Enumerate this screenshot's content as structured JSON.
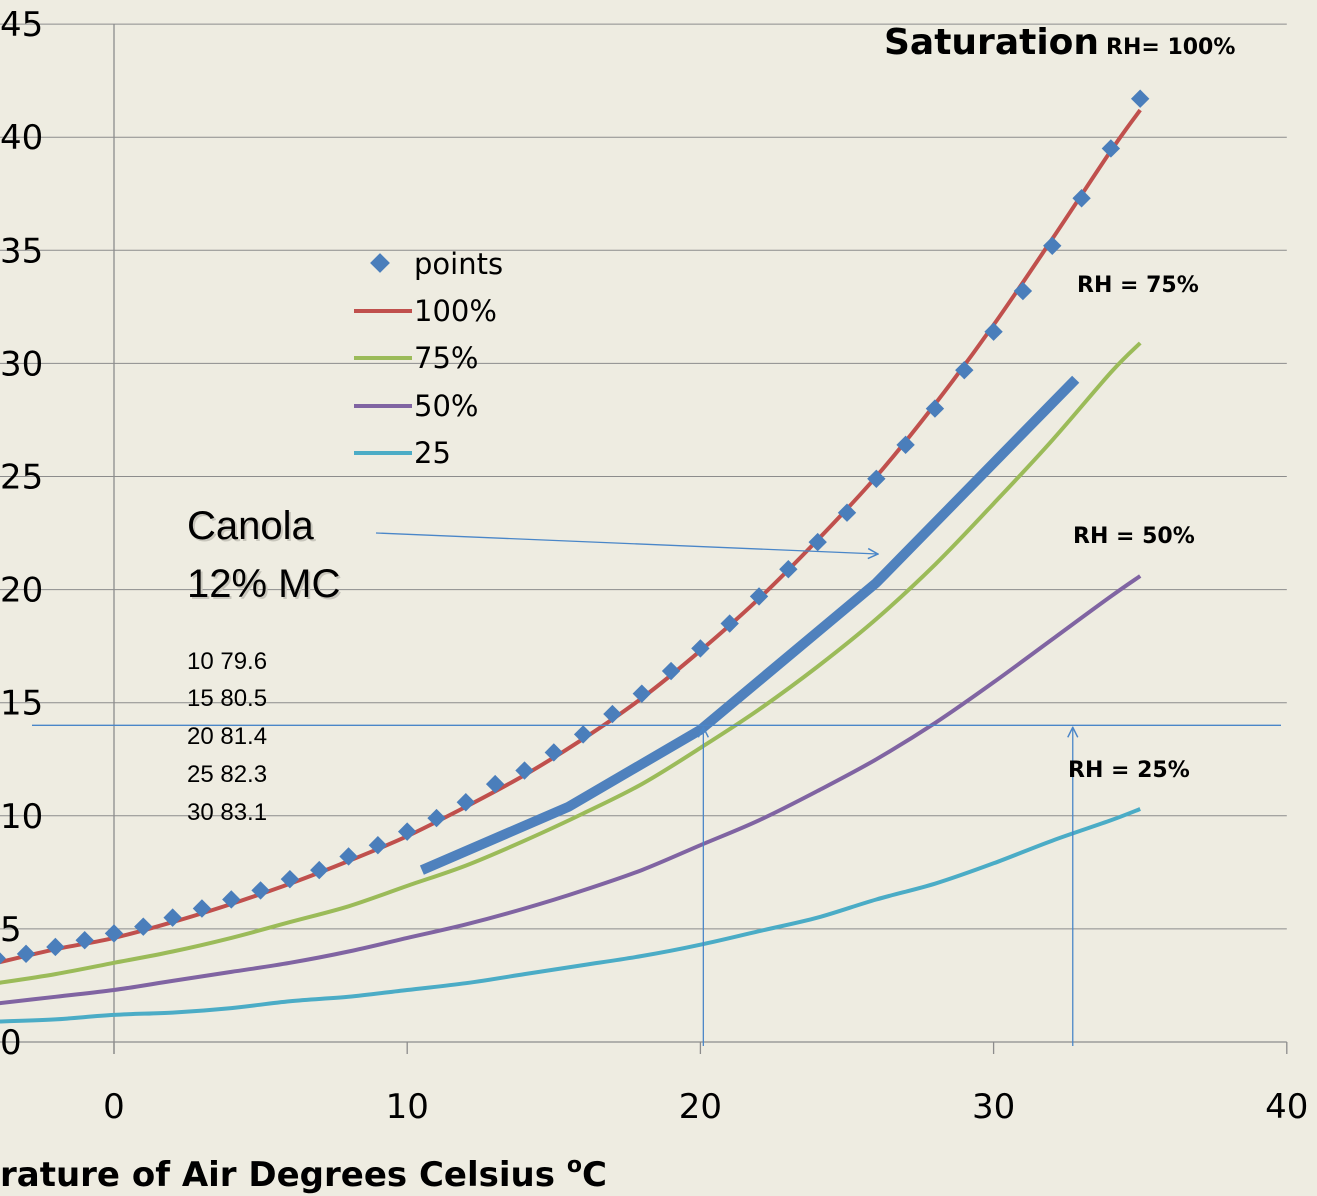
{
  "chart_data": {
    "type": "line",
    "xlabel": "rature of Air   Degrees Celsius  ",
    "xlabel_sup": "o",
    "xlabel_unit": "C",
    "xlim": [
      -4,
      40
    ],
    "ylim": [
      0,
      45
    ],
    "x_ticks": [
      "0",
      "10",
      "20",
      "30",
      "40"
    ],
    "y_ticks": [
      "0",
      "5",
      "10",
      "15",
      "20",
      "25",
      "30",
      "35",
      "40",
      "45"
    ],
    "grid": "horizontal",
    "legend_position": "center-left",
    "legend": [
      "points",
      "100%",
      "75%",
      "50%",
      "25"
    ],
    "colors": {
      "points": "#4a7ebb",
      "rh100": "#c0504d",
      "rh75": "#9bbb59",
      "rh50": "#8064a2",
      "rh25": "#4bacc6",
      "canola": "#4f81bd",
      "guide": "#4a86c8",
      "background": "#eeece1"
    },
    "series": [
      {
        "name": "points",
        "style": "markers",
        "x": [
          -4,
          -3,
          -2,
          -1,
          0,
          1,
          2,
          3,
          4,
          5,
          6,
          7,
          8,
          9,
          10,
          11,
          12,
          13,
          14,
          15,
          16,
          17,
          18,
          19,
          20,
          21,
          22,
          23,
          24,
          25,
          26,
          27,
          28,
          29,
          30,
          31,
          32,
          33,
          34,
          35
        ],
        "y": [
          3.7,
          3.9,
          4.2,
          4.5,
          4.8,
          5.1,
          5.5,
          5.9,
          6.3,
          6.7,
          7.2,
          7.6,
          8.2,
          8.7,
          9.3,
          9.9,
          10.6,
          11.4,
          12.0,
          12.8,
          13.6,
          14.5,
          15.4,
          16.4,
          17.4,
          18.5,
          19.7,
          20.9,
          22.1,
          23.4,
          24.9,
          26.4,
          28.0,
          29.7,
          31.4,
          33.2,
          35.2,
          37.3,
          39.5,
          41.7
        ]
      },
      {
        "name": "100%",
        "style": "line",
        "x": [
          -4,
          -2,
          0,
          2,
          4,
          6,
          8,
          10,
          12,
          14,
          16,
          18,
          20,
          22,
          24,
          26,
          28,
          30,
          32,
          34,
          35
        ],
        "y": [
          3.5,
          4.1,
          4.6,
          5.3,
          6.1,
          7.0,
          8.0,
          9.1,
          10.4,
          11.8,
          13.4,
          15.2,
          17.3,
          19.6,
          22.2,
          25.0,
          28.2,
          31.7,
          35.5,
          39.4,
          41.2
        ]
      },
      {
        "name": "75%",
        "style": "line",
        "x": [
          -4,
          -2,
          0,
          2,
          4,
          6,
          8,
          10,
          12,
          14,
          16,
          18,
          20,
          22,
          24,
          26,
          28,
          30,
          32,
          34,
          35
        ],
        "y": [
          2.6,
          3.0,
          3.5,
          4.0,
          4.6,
          5.3,
          6.0,
          6.9,
          7.8,
          8.9,
          10.1,
          11.4,
          13.0,
          14.7,
          16.6,
          18.7,
          21.1,
          23.8,
          26.6,
          29.6,
          30.9
        ]
      },
      {
        "name": "50%",
        "style": "line",
        "x": [
          -4,
          -2,
          0,
          2,
          4,
          6,
          8,
          10,
          12,
          14,
          16,
          18,
          20,
          22,
          24,
          26,
          28,
          30,
          32,
          34,
          35
        ],
        "y": [
          1.7,
          2.0,
          2.3,
          2.7,
          3.1,
          3.5,
          4.0,
          4.6,
          5.2,
          5.9,
          6.7,
          7.6,
          8.7,
          9.8,
          11.1,
          12.5,
          14.1,
          15.9,
          17.8,
          19.7,
          20.6
        ]
      },
      {
        "name": "25",
        "style": "line",
        "x": [
          -4,
          -2,
          0,
          2,
          4,
          6,
          8,
          10,
          12,
          14,
          16,
          18,
          20,
          22,
          24,
          26,
          28,
          30,
          32,
          34,
          35
        ],
        "y": [
          0.9,
          1.0,
          1.2,
          1.3,
          1.5,
          1.8,
          2.0,
          2.3,
          2.6,
          3.0,
          3.4,
          3.8,
          4.3,
          4.9,
          5.5,
          6.3,
          7.0,
          7.9,
          8.9,
          9.8,
          10.3
        ]
      },
      {
        "style": "thick-line",
        "x": [
          10.5,
          15.5,
          20,
          26,
          32.8
        ],
        "y": [
          7.6,
          10.4,
          13.8,
          20.3,
          29.3
        ]
      }
    ],
    "annotations": {
      "saturation": "Saturation",
      "rh100": "RH= 100%",
      "rh75": "RH = 75%",
      "rh50": "RH = 50%",
      "rh25": "RH = 25%",
      "canola_line1": "Canola",
      "canola_line2": "12% MC",
      "table": [
        "10 79.6",
        "15 80.5",
        "20 81.4",
        "25 82.3",
        "30 83.1"
      ]
    },
    "guides": {
      "horizontal_y": 14.0,
      "arrow_x": [
        20.1,
        32.7
      ]
    }
  }
}
